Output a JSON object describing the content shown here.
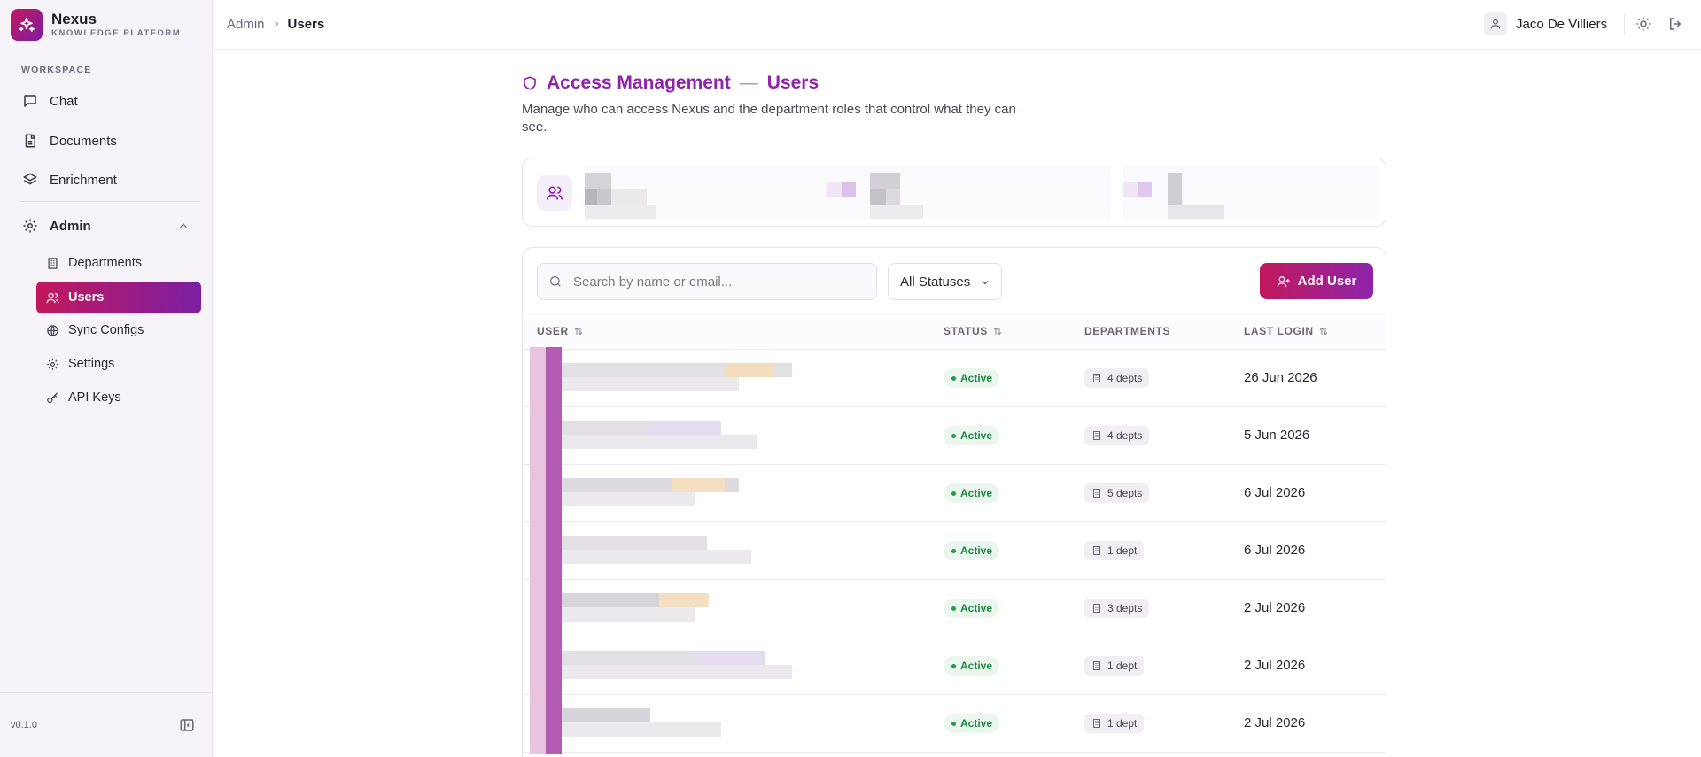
{
  "brand": {
    "name": "Nexus",
    "subtitle": "KNOWLEDGE PLATFORM"
  },
  "sidebar": {
    "section_label": "WORKSPACE",
    "items": [
      {
        "label": "Chat",
        "icon": "chat-icon"
      },
      {
        "label": "Documents",
        "icon": "document-icon"
      },
      {
        "label": "Enrichment",
        "icon": "layers-icon"
      },
      {
        "label": "Admin",
        "icon": "gear-icon",
        "expanded": true
      }
    ],
    "admin_items": [
      {
        "label": "Departments",
        "icon": "building-icon"
      },
      {
        "label": "Users",
        "icon": "users-icon",
        "active": true
      },
      {
        "label": "Sync Configs",
        "icon": "globe-icon"
      },
      {
        "label": "Settings",
        "icon": "gear-icon"
      },
      {
        "label": "API Keys",
        "icon": "key-icon"
      }
    ],
    "version": "v0.1.0"
  },
  "topbar": {
    "breadcrumb": [
      "Admin",
      "Users"
    ],
    "user_name": "Jaco De Villiers"
  },
  "page": {
    "title": "Access Management",
    "title_dash": "—",
    "title_sub": "Users",
    "description": "Manage who can access Nexus and the department roles that control what they can see."
  },
  "toolbar": {
    "search_placeholder": "Search by name or email...",
    "status_filter": "All Statuses",
    "add_label": "Add User"
  },
  "table": {
    "columns": [
      "USER",
      "STATUS",
      "DEPARTMENTS",
      "LAST LOGIN"
    ],
    "rows": [
      {
        "status": "Active",
        "departments": "4 depts",
        "last_login": "26 Jun 2026"
      },
      {
        "status": "Active",
        "departments": "4 depts",
        "last_login": "5 Jun 2026"
      },
      {
        "status": "Active",
        "departments": "5 depts",
        "last_login": "6 Jul 2026"
      },
      {
        "status": "Active",
        "departments": "1 dept",
        "last_login": "6 Jul 2026"
      },
      {
        "status": "Active",
        "departments": "3 depts",
        "last_login": "2 Jul 2026"
      },
      {
        "status": "Active",
        "departments": "1 dept",
        "last_login": "2 Jul 2026"
      },
      {
        "status": "Active",
        "departments": "1 dept",
        "last_login": "2 Jul 2026"
      }
    ]
  },
  "colors": {
    "accent_start": "#c2185b",
    "accent_end": "#7b1fa2",
    "title": "#8e24aa",
    "status_active": "#1f8a44"
  }
}
